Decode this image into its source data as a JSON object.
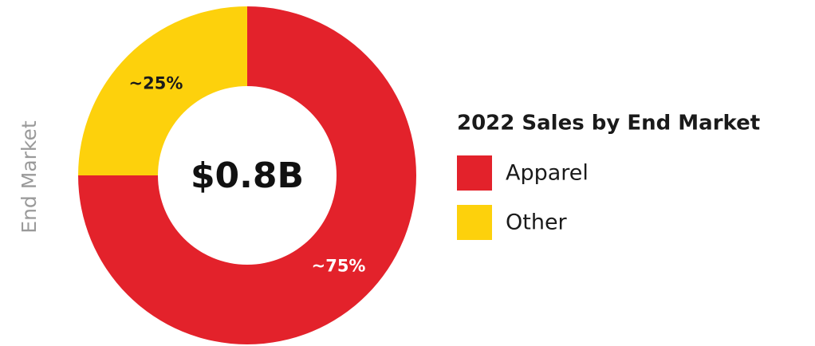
{
  "chart_data": {
    "type": "pie",
    "donut": true,
    "axis_label": "End Market",
    "center_label": "$0.8B",
    "legend_title": "2022 Sales by End Market",
    "categories": [
      "Apparel",
      "Other"
    ],
    "values": [
      75,
      25
    ],
    "value_labels": [
      "~75%",
      "~25%"
    ],
    "colors": [
      "#e3222b",
      "#fdd10c"
    ]
  }
}
